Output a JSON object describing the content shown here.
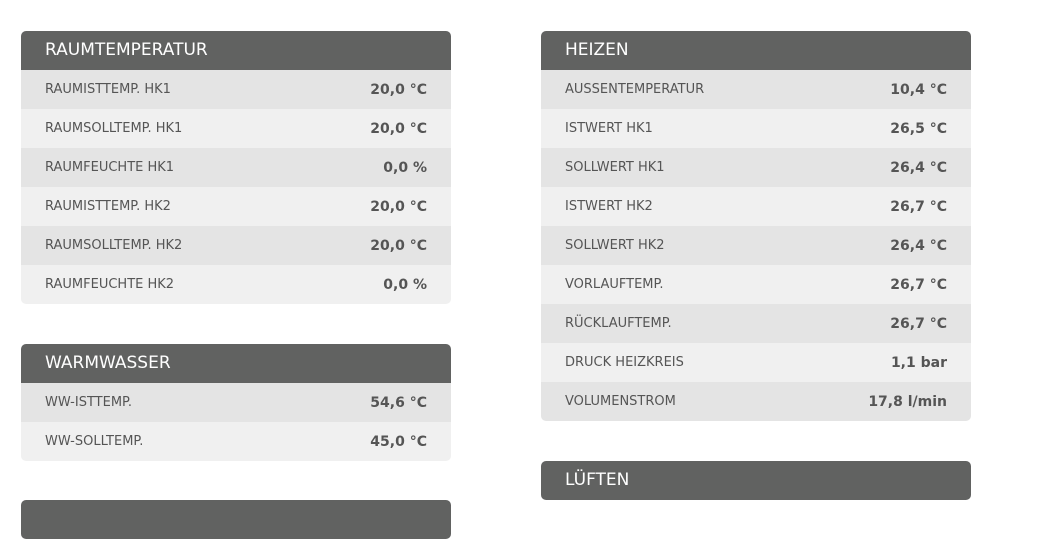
{
  "raumtemperatur": {
    "title": "RAUMTEMPERATUR",
    "rows": [
      {
        "label": "RAUMISTTEMP. HK1",
        "value": "20,0 °C"
      },
      {
        "label": "RAUMSOLLTEMP. HK1",
        "value": "20,0 °C"
      },
      {
        "label": "RAUMFEUCHTE HK1",
        "value": "0,0 %"
      },
      {
        "label": "RAUMISTTEMP. HK2",
        "value": "20,0 °C"
      },
      {
        "label": "RAUMSOLLTEMP. HK2",
        "value": "20,0 °C"
      },
      {
        "label": "RAUMFEUCHTE HK2",
        "value": "0,0 %"
      }
    ]
  },
  "warmwasser": {
    "title": "WARMWASSER",
    "rows": [
      {
        "label": "WW-ISTTEMP.",
        "value": "54,6 °C"
      },
      {
        "label": "WW-SOLLTEMP.",
        "value": "45,0 °C"
      }
    ]
  },
  "heizen": {
    "title": "HEIZEN",
    "rows": [
      {
        "label": "AUSSENTEMPERATUR",
        "value": "10,4 °C"
      },
      {
        "label": "ISTWERT HK1",
        "value": "26,5 °C"
      },
      {
        "label": "SOLLWERT HK1",
        "value": "26,4 °C"
      },
      {
        "label": "ISTWERT HK2",
        "value": "26,7 °C"
      },
      {
        "label": "SOLLWERT HK2",
        "value": "26,4 °C"
      },
      {
        "label": "VORLAUFTEMP.",
        "value": "26,7 °C"
      },
      {
        "label": "RÜCKLAUFTEMP.",
        "value": "26,7 °C"
      },
      {
        "label": "DRUCK HEIZKREIS",
        "value": "1,1 bar"
      },
      {
        "label": "VOLUMENSTROM",
        "value": "17,8 l/min"
      }
    ]
  },
  "lueften": {
    "title": "LÜFTEN"
  }
}
